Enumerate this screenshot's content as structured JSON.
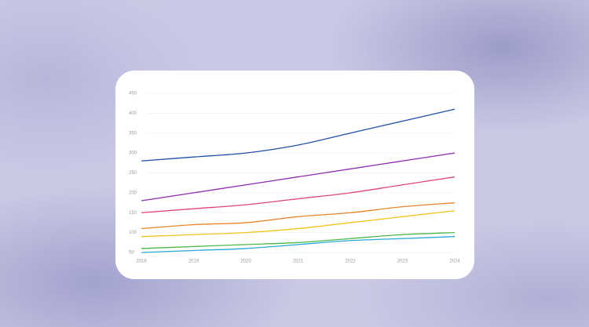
{
  "chart_data": {
    "type": "line",
    "x": [
      "2018",
      "2019",
      "2020",
      "2021",
      "2022",
      "2023",
      "2024"
    ],
    "series": [
      {
        "color": "#1f4fa8",
        "values": [
          280,
          290,
          300,
          320,
          350,
          380,
          410
        ]
      },
      {
        "color": "#8e2bb0",
        "values": [
          180,
          200,
          220,
          240,
          260,
          280,
          300
        ]
      },
      {
        "color": "#e0457a",
        "values": [
          150,
          160,
          170,
          185,
          200,
          220,
          240
        ]
      },
      {
        "color": "#e8862a",
        "values": [
          110,
          120,
          125,
          140,
          150,
          165,
          175
        ]
      },
      {
        "color": "#f0c419",
        "values": [
          90,
          95,
          100,
          110,
          125,
          140,
          155
        ]
      },
      {
        "color": "#4cb748",
        "values": [
          60,
          65,
          70,
          75,
          85,
          95,
          100
        ]
      },
      {
        "color": "#2aa8d8",
        "values": [
          50,
          55,
          60,
          70,
          80,
          85,
          90
        ]
      }
    ],
    "ylim": [
      50,
      450
    ],
    "yticks": [
      50,
      100,
      150,
      200,
      250,
      300,
      350,
      400,
      450
    ],
    "grid": true
  }
}
